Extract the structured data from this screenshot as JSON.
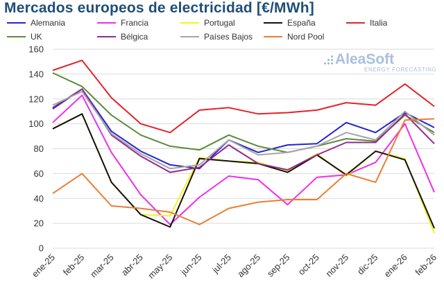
{
  "title": "Mercados europeos de electricidad [€/MWh]",
  "logo": {
    "name": "AleaSoft",
    "tagline": "ENERGY FORECASTING"
  },
  "chart_data": {
    "type": "line",
    "categories": [
      "ene-25",
      "feb-25",
      "mar-25",
      "abr-25",
      "may-25",
      "jun-25",
      "jul-25",
      "ago-25",
      "sep-25",
      "oct-25",
      "nov-25",
      "dic-25",
      "ene-26",
      "feb-26"
    ],
    "ylim": [
      0,
      160
    ],
    "yticks": [
      0,
      20,
      40,
      60,
      80,
      100,
      120,
      140,
      160
    ],
    "grid": true,
    "legend_position": "top",
    "series": [
      {
        "name": "Alemania",
        "color": "#2323d6",
        "values": [
          112,
          128,
          94,
          78,
          67,
          64,
          87,
          77,
          83,
          84,
          101,
          93,
          109,
          97
        ]
      },
      {
        "name": "Francia",
        "color": "#ee2cee",
        "values": [
          101,
          123,
          77,
          43,
          19,
          41,
          58,
          55,
          35,
          57,
          59,
          69,
          100,
          45
        ]
      },
      {
        "name": "Portugal",
        "color": "#f7f21d",
        "values": [
          96,
          108,
          53,
          27,
          26,
          73,
          70,
          69,
          62,
          76,
          58,
          78,
          72,
          12
        ]
      },
      {
        "name": "España",
        "color": "#111111",
        "values": [
          96,
          108,
          53,
          27,
          17,
          72,
          70,
          68,
          61,
          75,
          59,
          78,
          71,
          16
        ]
      },
      {
        "name": "Italia",
        "color": "#e32228",
        "values": [
          143,
          151,
          121,
          100,
          93,
          111,
          113,
          108,
          109,
          111,
          117,
          115,
          132,
          114
        ]
      },
      {
        "name": "UK",
        "color": "#5b8c3a",
        "values": [
          141,
          130,
          107,
          91,
          82,
          79,
          91,
          82,
          77,
          82,
          88,
          86,
          107,
          93
        ]
      },
      {
        "name": "Bélgica",
        "color": "#93288e",
        "values": [
          113,
          128,
          91,
          74,
          61,
          65,
          83,
          68,
          63,
          75,
          85,
          85,
          108,
          84
        ]
      },
      {
        "name": "Países Bajos",
        "color": "#a5a5a5",
        "values": [
          115,
          126,
          92,
          76,
          64,
          67,
          87,
          75,
          77,
          82,
          93,
          87,
          110,
          91
        ]
      },
      {
        "name": "Nord Pool",
        "color": "#ed7d31",
        "values": [
          44,
          60,
          34,
          32,
          29,
          19,
          32,
          37,
          39,
          39,
          60,
          53,
          103,
          104
        ]
      }
    ]
  }
}
